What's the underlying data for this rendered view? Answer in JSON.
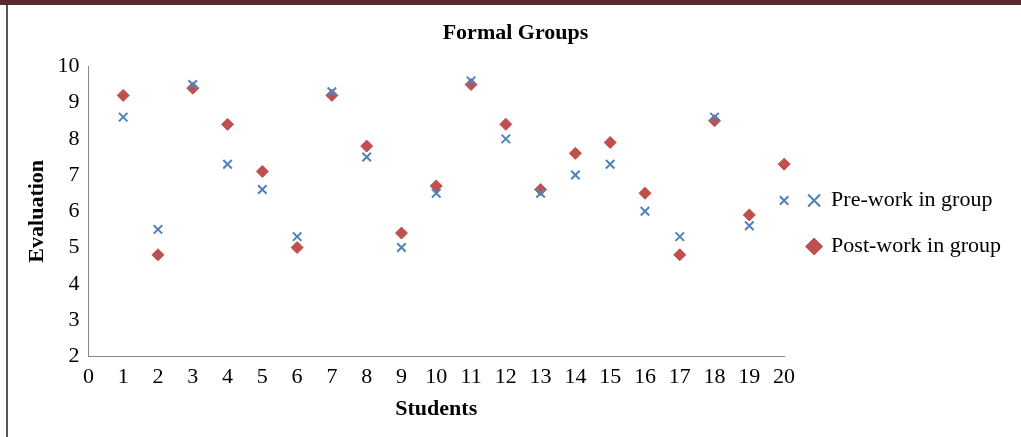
{
  "chart_data": {
    "type": "scatter",
    "title": "Formal Groups",
    "xlabel": "Students",
    "ylabel": "Evaluation",
    "x": [
      1,
      2,
      3,
      4,
      5,
      6,
      7,
      8,
      9,
      10,
      11,
      12,
      13,
      14,
      15,
      16,
      17,
      18,
      19,
      20
    ],
    "series": [
      {
        "name": "Post-work in group",
        "color": "#c0504d",
        "marker": "diamond",
        "values": [
          9.2,
          4.8,
          9.4,
          8.4,
          7.1,
          5.0,
          9.2,
          7.8,
          5.4,
          6.7,
          9.5,
          8.4,
          6.6,
          7.6,
          7.9,
          6.5,
          4.8,
          8.5,
          5.9,
          7.3
        ]
      },
      {
        "name": "Pre-work in group",
        "color": "#4f81bd",
        "marker": "cross",
        "values": [
          8.6,
          5.5,
          9.5,
          7.3,
          6.6,
          5.3,
          9.3,
          7.5,
          5.0,
          6.5,
          9.6,
          8.0,
          6.5,
          7.0,
          7.3,
          6.0,
          5.3,
          8.6,
          5.6,
          6.3
        ]
      }
    ],
    "xlim": [
      0,
      20
    ],
    "xticks": [
      0,
      1,
      2,
      3,
      4,
      5,
      6,
      7,
      8,
      9,
      10,
      11,
      12,
      13,
      14,
      15,
      16,
      17,
      18,
      19,
      20
    ],
    "ylim": [
      2,
      10
    ],
    "yticks": [
      2,
      3,
      4,
      5,
      6,
      7,
      8,
      9,
      10
    ],
    "grid": false,
    "legend": "right"
  }
}
